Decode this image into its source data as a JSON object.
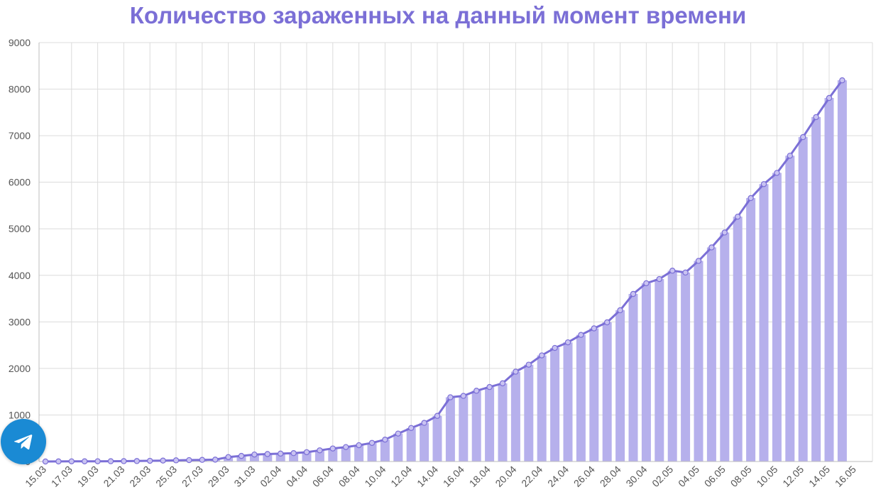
{
  "chart_data": {
    "type": "bar+line",
    "title": "Количество зараженных на данный момент времени",
    "xlabel": "",
    "ylabel": "",
    "ylim": [
      0,
      9000
    ],
    "yticks": [
      0,
      1000,
      2000,
      3000,
      4000,
      5000,
      6000,
      7000,
      8000,
      9000
    ],
    "ytick_labels": [
      "0",
      "1000",
      "2000",
      "3000",
      "4000",
      "5000",
      "6000",
      "7000",
      "8000",
      "9000"
    ],
    "start_date": "15.03",
    "xtick_labels": [
      "15.03",
      "17.03",
      "19.03",
      "21.03",
      "23.03",
      "25.03",
      "27.03",
      "29.03",
      "31.03",
      "02.04",
      "04.04",
      "06.04",
      "08.04",
      "10.04",
      "12.04",
      "14.04",
      "16.04",
      "18.04",
      "20.04",
      "22.04",
      "24.04",
      "26.04",
      "28.04",
      "30.04",
      "02.05",
      "04.05",
      "06.05",
      "08.05",
      "10.05",
      "12.05",
      "14.05",
      "16.05"
    ],
    "grid": true,
    "series_color": "#7b6fd6",
    "bar_color": "#b6b0ec",
    "values": [
      0,
      2,
      3,
      4,
      5,
      6,
      8,
      10,
      15,
      20,
      25,
      30,
      35,
      40,
      95,
      120,
      150,
      160,
      170,
      180,
      200,
      240,
      280,
      310,
      350,
      400,
      470,
      600,
      720,
      830,
      980,
      1380,
      1410,
      1520,
      1600,
      1680,
      1930,
      2080,
      2280,
      2440,
      2560,
      2720,
      2860,
      2990,
      3250,
      3600,
      3830,
      3920,
      4100,
      4060,
      4310,
      4600,
      4920,
      5260,
      5660,
      5960,
      6200,
      6570,
      6970,
      7400,
      7810,
      8190
    ]
  },
  "widgets": {
    "telegram_icon": "telegram-paper-plane-icon",
    "telegram_color": "#1a8ad4"
  }
}
